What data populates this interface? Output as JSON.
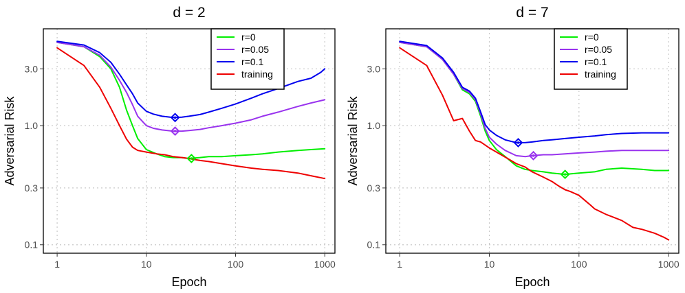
{
  "chart_data": [
    {
      "type": "line",
      "title": "d = 2",
      "xlabel": "Epoch",
      "ylabel": "Adversarial Risk",
      "x_scale": "log10",
      "y_scale": "log10",
      "xlim": [
        0.7,
        1300
      ],
      "ylim": [
        0.085,
        6.5
      ],
      "x_ticks": [
        {
          "value": 1,
          "label": "1"
        },
        {
          "value": 10,
          "label": "10"
        },
        {
          "value": 100,
          "label": "100"
        },
        {
          "value": 1000,
          "label": "1000"
        }
      ],
      "y_ticks": [
        {
          "value": 0.1,
          "label": "0.1"
        },
        {
          "value": 0.3,
          "label": "0.3"
        },
        {
          "value": 1.0,
          "label": "1.0"
        },
        {
          "value": 3.0,
          "label": "3.0"
        }
      ],
      "grid": true,
      "legend_position": "top-right",
      "series": [
        {
          "name": "r=0",
          "color": "#00ee00",
          "x": [
            1,
            2,
            3,
            4,
            5,
            6,
            7,
            8,
            10,
            13,
            16,
            20,
            25,
            30,
            40,
            50,
            70,
            100,
            150,
            200,
            300,
            500,
            700,
            1000
          ],
          "y": [
            5.0,
            4.6,
            3.8,
            3.0,
            2.1,
            1.35,
            1.0,
            0.78,
            0.63,
            0.58,
            0.55,
            0.54,
            0.54,
            0.53,
            0.54,
            0.55,
            0.55,
            0.56,
            0.57,
            0.58,
            0.6,
            0.62,
            0.63,
            0.64
          ],
          "marker": {
            "x": 32,
            "y": 0.53
          }
        },
        {
          "name": "r=0.05",
          "color": "#9933ee",
          "x": [
            1,
            2,
            3,
            4,
            5,
            6,
            7,
            8,
            10,
            12,
            15,
            20,
            25,
            30,
            40,
            50,
            70,
            100,
            150,
            200,
            300,
            500,
            700,
            1000
          ],
          "y": [
            5.0,
            4.6,
            3.9,
            3.1,
            2.4,
            1.9,
            1.5,
            1.2,
            1.0,
            0.95,
            0.92,
            0.9,
            0.9,
            0.91,
            0.93,
            0.96,
            1.0,
            1.05,
            1.12,
            1.2,
            1.3,
            1.45,
            1.55,
            1.65
          ],
          "marker": {
            "x": 21,
            "y": 0.9
          }
        },
        {
          "name": "r=0.1",
          "color": "#0000ee",
          "x": [
            1,
            2,
            3,
            4,
            5,
            6,
            7,
            8,
            10,
            12,
            15,
            20,
            25,
            30,
            40,
            50,
            70,
            100,
            150,
            200,
            300,
            500,
            700,
            900,
            1000
          ],
          "y": [
            5.1,
            4.75,
            4.1,
            3.4,
            2.7,
            2.2,
            1.85,
            1.55,
            1.32,
            1.25,
            1.2,
            1.17,
            1.18,
            1.2,
            1.24,
            1.3,
            1.4,
            1.52,
            1.7,
            1.85,
            2.05,
            2.35,
            2.5,
            2.8,
            3.0
          ],
          "marker": {
            "x": 21,
            "y": 1.17
          }
        },
        {
          "name": "training",
          "color": "#ee0000",
          "x": [
            1,
            2,
            3,
            4,
            5,
            6,
            7,
            8,
            10,
            13,
            16,
            20,
            25,
            30,
            40,
            50,
            70,
            100,
            150,
            200,
            300,
            500,
            700,
            1000
          ],
          "y": [
            4.5,
            3.2,
            2.1,
            1.4,
            1.0,
            0.77,
            0.66,
            0.62,
            0.6,
            0.58,
            0.57,
            0.55,
            0.54,
            0.53,
            0.51,
            0.5,
            0.48,
            0.46,
            0.44,
            0.43,
            0.42,
            0.4,
            0.38,
            0.36
          ]
        }
      ]
    },
    {
      "type": "line",
      "title": "d = 7",
      "xlabel": "Epoch",
      "ylabel": "Adversarial Risk",
      "x_scale": "log10",
      "y_scale": "log10",
      "xlim": [
        0.7,
        1300
      ],
      "ylim": [
        0.085,
        6.5
      ],
      "x_ticks": [
        {
          "value": 1,
          "label": "1"
        },
        {
          "value": 10,
          "label": "10"
        },
        {
          "value": 100,
          "label": "100"
        },
        {
          "value": 1000,
          "label": "1000"
        }
      ],
      "y_ticks": [
        {
          "value": 0.1,
          "label": "0.1"
        },
        {
          "value": 0.3,
          "label": "0.3"
        },
        {
          "value": 1.0,
          "label": "1.0"
        },
        {
          "value": 3.0,
          "label": "3.0"
        }
      ],
      "grid": true,
      "legend_position": "top-right",
      "series": [
        {
          "name": "r=0",
          "color": "#00ee00",
          "x": [
            1,
            2,
            3,
            4,
            5,
            6,
            7,
            8,
            9,
            10,
            12,
            15,
            20,
            25,
            30,
            40,
            50,
            70,
            100,
            150,
            200,
            300,
            500,
            700,
            1000
          ],
          "y": [
            5.0,
            4.6,
            3.6,
            2.7,
            2.0,
            1.85,
            1.6,
            1.2,
            0.9,
            0.75,
            0.63,
            0.55,
            0.46,
            0.43,
            0.42,
            0.41,
            0.4,
            0.39,
            0.4,
            0.41,
            0.43,
            0.44,
            0.43,
            0.42,
            0.42
          ],
          "marker": {
            "x": 70,
            "y": 0.39
          }
        },
        {
          "name": "r=0.05",
          "color": "#9933ee",
          "x": [
            1,
            2,
            3,
            4,
            5,
            6,
            7,
            8,
            9,
            10,
            12,
            15,
            20,
            25,
            30,
            40,
            50,
            70,
            100,
            150,
            200,
            300,
            500,
            700,
            1000
          ],
          "y": [
            5.0,
            4.6,
            3.6,
            2.7,
            2.05,
            1.9,
            1.65,
            1.25,
            0.95,
            0.8,
            0.7,
            0.62,
            0.56,
            0.55,
            0.56,
            0.57,
            0.57,
            0.58,
            0.59,
            0.6,
            0.61,
            0.62,
            0.62,
            0.62,
            0.62
          ],
          "marker": {
            "x": 31,
            "y": 0.56
          }
        },
        {
          "name": "r=0.1",
          "color": "#0000ee",
          "x": [
            1,
            2,
            3,
            4,
            5,
            6,
            7,
            8,
            9,
            10,
            12,
            15,
            20,
            25,
            30,
            40,
            50,
            70,
            100,
            150,
            200,
            300,
            500,
            700,
            1000
          ],
          "y": [
            5.1,
            4.7,
            3.7,
            2.8,
            2.1,
            1.95,
            1.7,
            1.3,
            1.02,
            0.92,
            0.83,
            0.76,
            0.72,
            0.72,
            0.73,
            0.75,
            0.76,
            0.78,
            0.8,
            0.82,
            0.84,
            0.86,
            0.87,
            0.87,
            0.87
          ],
          "marker": {
            "x": 21,
            "y": 0.72
          }
        },
        {
          "name": "training",
          "color": "#ee0000",
          "x": [
            1,
            2,
            3,
            4,
            5,
            6,
            7,
            8,
            10,
            13,
            16,
            20,
            25,
            30,
            40,
            50,
            60,
            70,
            80,
            100,
            130,
            150,
            200,
            300,
            400,
            500,
            700,
            900,
            1000
          ],
          "y": [
            4.5,
            3.2,
            1.8,
            1.1,
            1.15,
            0.9,
            0.75,
            0.73,
            0.65,
            0.58,
            0.53,
            0.48,
            0.45,
            0.41,
            0.37,
            0.34,
            0.31,
            0.29,
            0.28,
            0.26,
            0.22,
            0.2,
            0.18,
            0.16,
            0.14,
            0.135,
            0.125,
            0.115,
            0.11
          ]
        }
      ]
    }
  ]
}
